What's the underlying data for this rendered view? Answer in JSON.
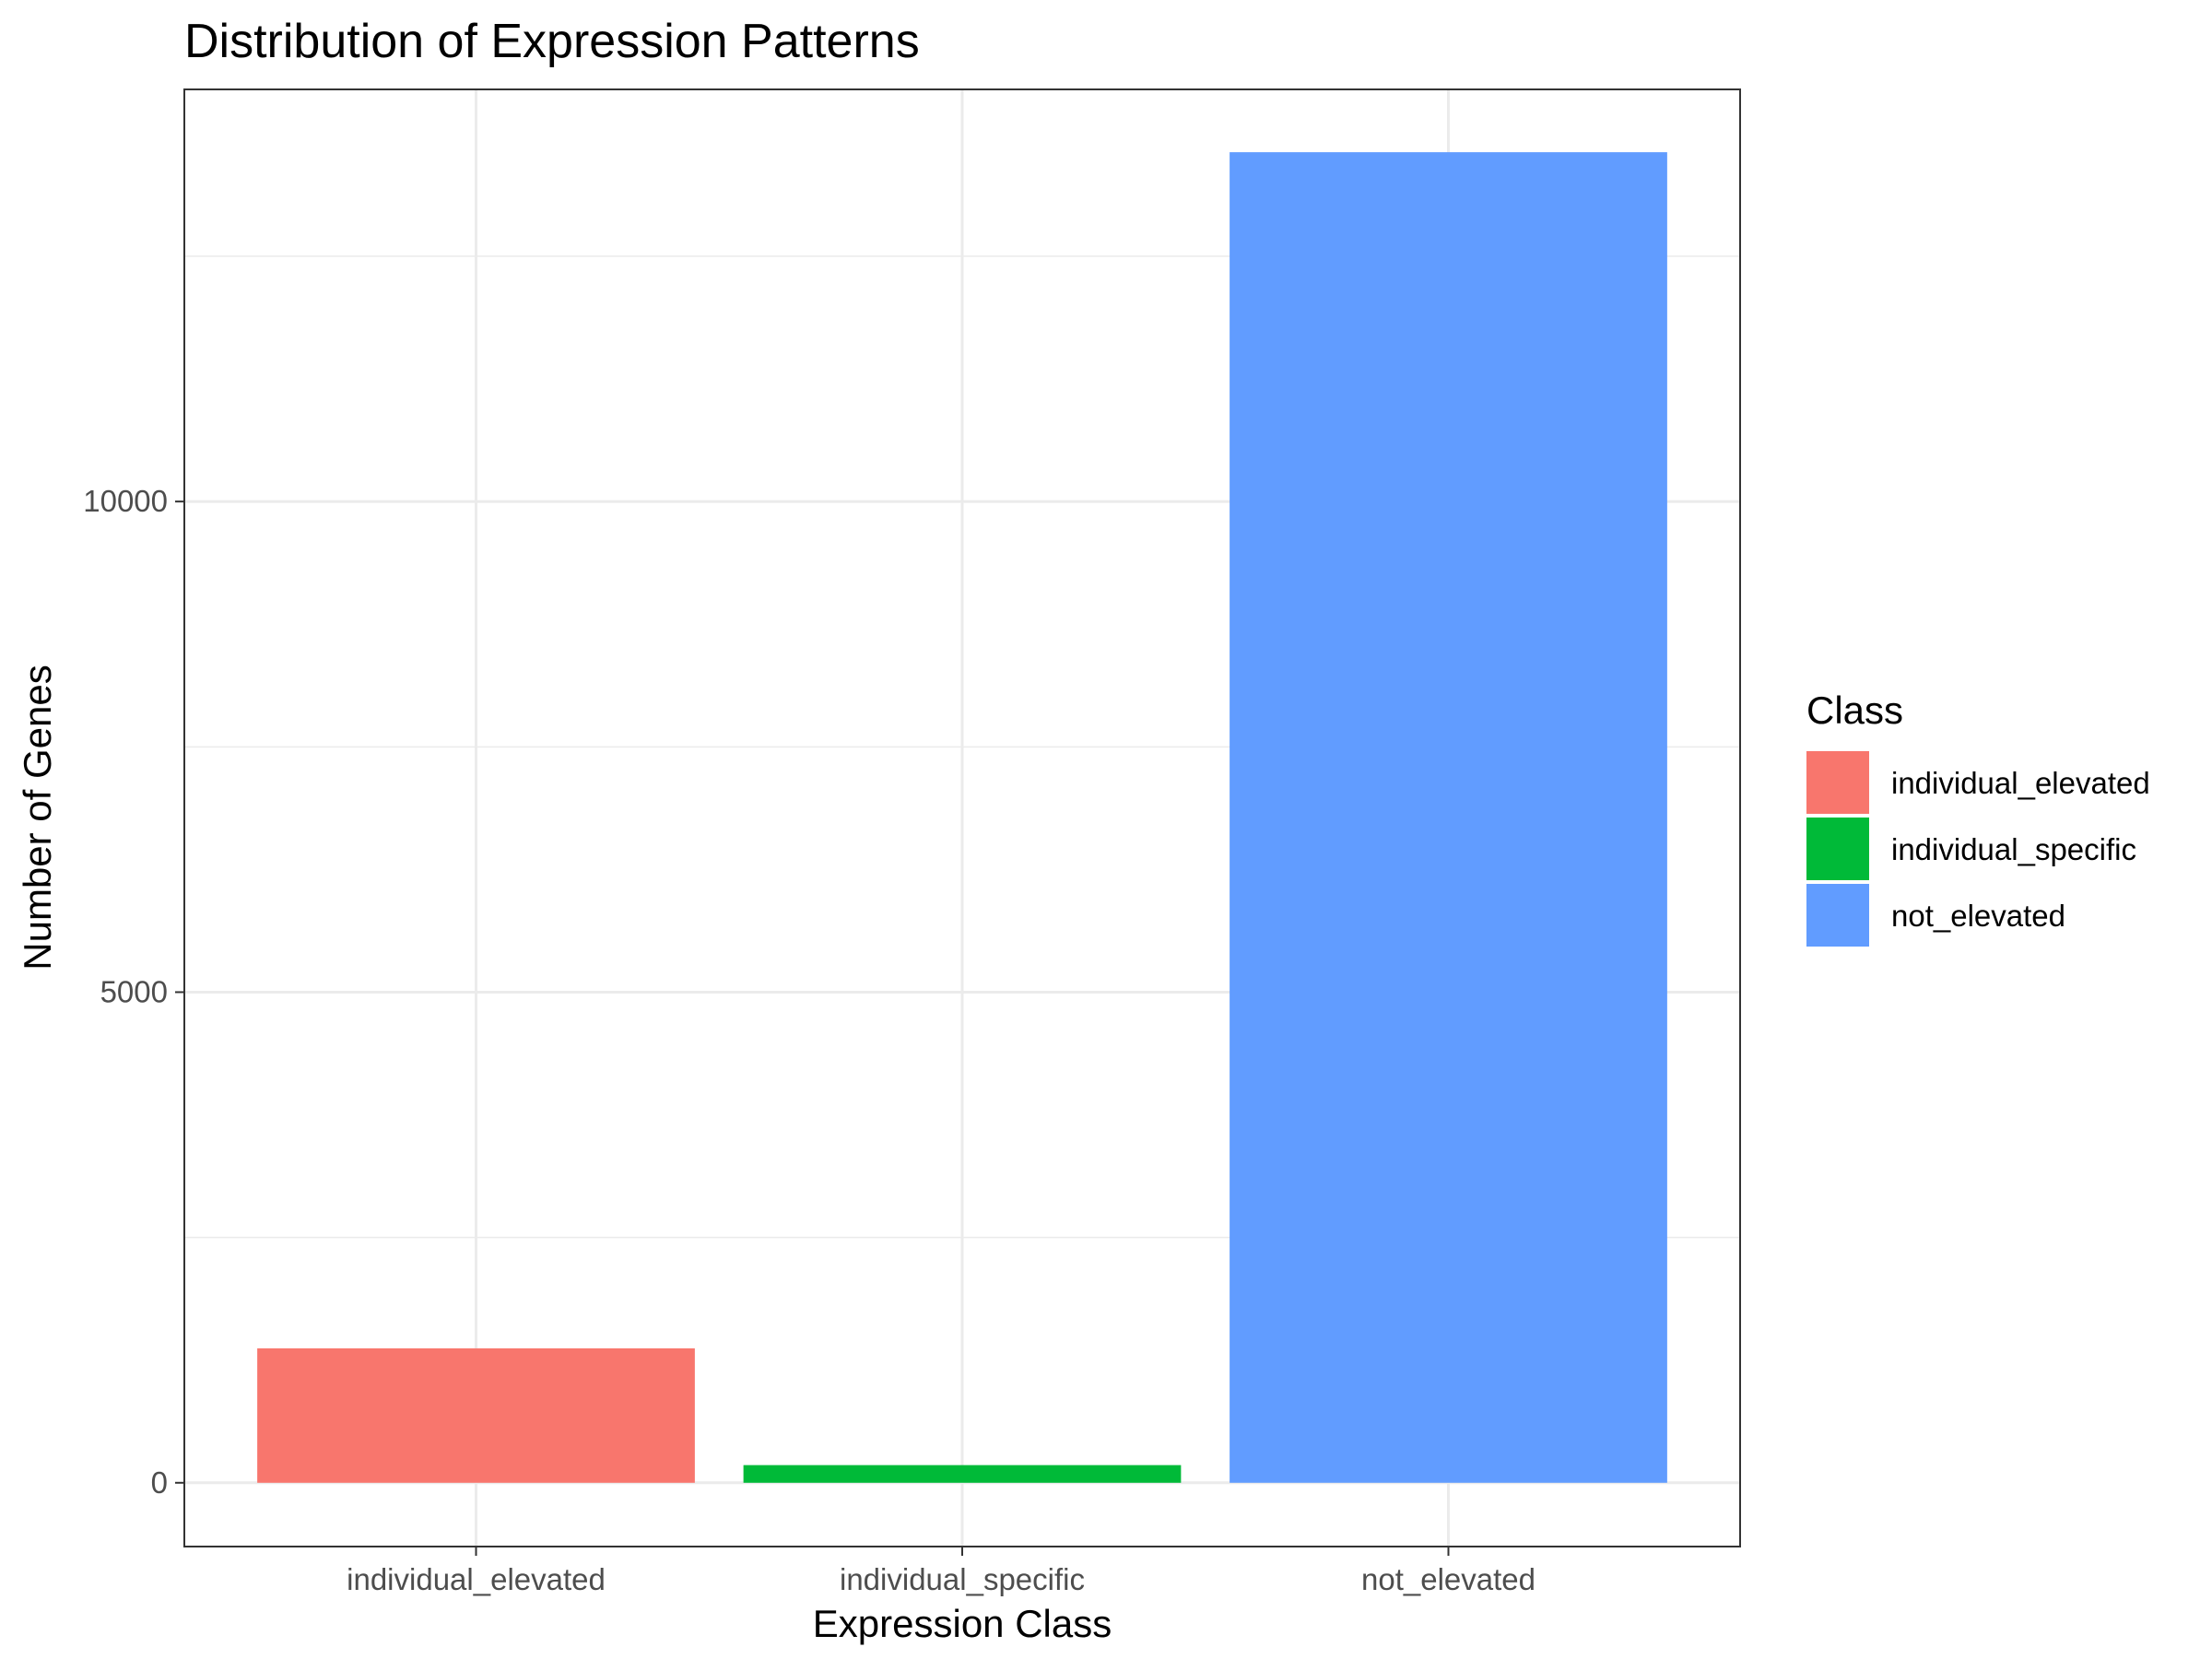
{
  "chart_data": {
    "type": "bar",
    "title": "Distribution of Expression Patterns",
    "xlabel": "Expression Class",
    "ylabel": "Number of Genes",
    "categories": [
      "individual_elevated",
      "individual_specific",
      "not_elevated"
    ],
    "values": [
      1370,
      180,
      13560
    ],
    "colors": [
      "#F8766D",
      "#00BA38",
      "#619CFF"
    ],
    "ylim": [
      -650,
      14200
    ],
    "y_ticks": [
      0,
      5000,
      10000
    ],
    "y_tick_labels": [
      "0",
      "5000",
      "10000"
    ],
    "grid": true,
    "legend": {
      "title": "Class",
      "position": "right",
      "entries": [
        "individual_elevated",
        "individual_specific",
        "not_elevated"
      ]
    }
  }
}
